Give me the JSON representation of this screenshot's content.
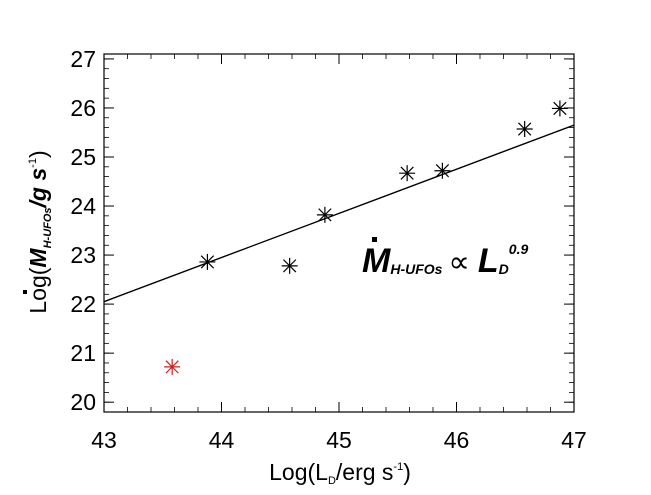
{
  "chart_data": {
    "type": "scatter",
    "xlim": [
      43,
      47
    ],
    "ylim": [
      19.8,
      27.1
    ],
    "x_ticks": [
      "43",
      "44",
      "45",
      "46",
      "47"
    ],
    "y_ticks": [
      "20",
      "21",
      "22",
      "23",
      "24",
      "25",
      "26",
      "27"
    ],
    "x_tick_values": [
      43,
      44,
      45,
      46,
      47
    ],
    "y_tick_values": [
      20,
      21,
      22,
      23,
      24,
      25,
      26,
      27
    ],
    "x_minor_step": 0.2,
    "y_minor_step": 0.2,
    "xlabel": {
      "prefix": "Log(L",
      "sub": "D",
      "mid": "/erg s",
      "sup": "-1",
      "suffix": ")"
    },
    "ylabel": {
      "prefix": "Log(",
      "mdot": "M",
      "sub": "H-UFOs",
      "mid": "/g s",
      "sup": "-1",
      "suffix": ")"
    },
    "points": [
      {
        "x": 43.58,
        "y": 20.72,
        "color": "#cc1f1f"
      },
      {
        "x": 43.88,
        "y": 22.86,
        "color": "#000000"
      },
      {
        "x": 44.58,
        "y": 22.78,
        "color": "#000000"
      },
      {
        "x": 44.88,
        "y": 23.82,
        "color": "#000000"
      },
      {
        "x": 45.58,
        "y": 24.67,
        "color": "#000000"
      },
      {
        "x": 45.88,
        "y": 24.72,
        "color": "#000000"
      },
      {
        "x": 46.58,
        "y": 25.57,
        "color": "#000000"
      },
      {
        "x": 46.88,
        "y": 25.99,
        "color": "#000000"
      }
    ],
    "fit_line": {
      "x": [
        43,
        47
      ],
      "y": [
        22.05,
        25.65
      ]
    },
    "annotation": {
      "mdot": "M",
      "sub": "H-UFOs",
      "propto": "∝",
      "L": "L",
      "L_sub": "D",
      "exponent": "0.9"
    },
    "grid": false,
    "legend": "none"
  }
}
